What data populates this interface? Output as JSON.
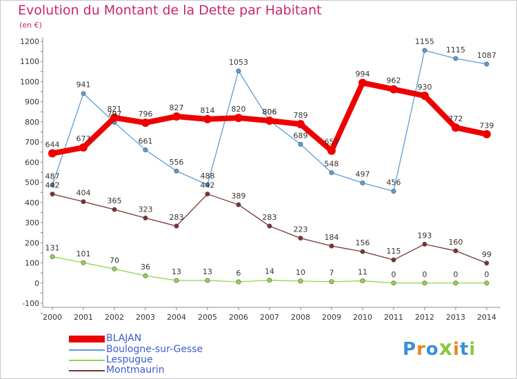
{
  "title": "Evolution du Montant de la Dette par Habitant",
  "subtitle": "(en €)",
  "logo": "Proxiti",
  "chart_data": {
    "type": "line",
    "x": [
      2000,
      2001,
      2002,
      2003,
      2004,
      2005,
      2006,
      2007,
      2008,
      2009,
      2010,
      2011,
      2012,
      2013,
      2014
    ],
    "ylim": [
      -100,
      1200
    ],
    "yticks": [
      -100,
      0,
      100,
      200,
      300,
      400,
      500,
      600,
      700,
      800,
      900,
      1000,
      1100,
      1200
    ],
    "grid": false,
    "legend_position": "bottom-left",
    "series": [
      {
        "name": "BLAJAN",
        "color": "#ee0000",
        "values": [
          644,
          673,
          821,
          796,
          827,
          814,
          820,
          806,
          789,
          657,
          994,
          962,
          930,
          772,
          739
        ]
      },
      {
        "name": "Boulogne-sur-Gesse",
        "color": "#5a9dd6",
        "values": [
          487,
          941,
          797,
          661,
          556,
          488,
          1053,
          806,
          689,
          548,
          497,
          456,
          1155,
          1115,
          1087
        ]
      },
      {
        "name": "Lespugue",
        "color": "#8ed64a",
        "values": [
          131,
          101,
          70,
          36,
          13,
          13,
          6,
          14,
          10,
          7,
          11,
          0,
          0,
          0,
          0
        ]
      },
      {
        "name": "Montmaurin",
        "color": "#7a3232",
        "values": [
          442,
          404,
          365,
          323,
          283,
          442,
          389,
          283,
          223,
          184,
          156,
          115,
          193,
          160,
          99
        ]
      }
    ],
    "labels": [
      [
        "644",
        "673",
        "821",
        "796",
        "827",
        "814",
        "820",
        "806",
        "789",
        "657",
        "994",
        "962",
        "930",
        "772",
        "739"
      ],
      [
        "487",
        "941",
        "797",
        "661",
        "556",
        "488",
        "1053",
        "806",
        "689",
        "548",
        "497",
        "456",
        "1155",
        "1115",
        "1087"
      ],
      [
        "131",
        "101",
        "70",
        "36",
        "13",
        "13",
        "6",
        "14",
        "10",
        "7",
        "11",
        "0",
        "0",
        "0",
        "0"
      ],
      [
        "442",
        "404",
        "365",
        "323",
        "283",
        "442",
        "389",
        "283",
        "223",
        "184",
        "156",
        "115",
        "193",
        "160",
        "99"
      ]
    ]
  }
}
